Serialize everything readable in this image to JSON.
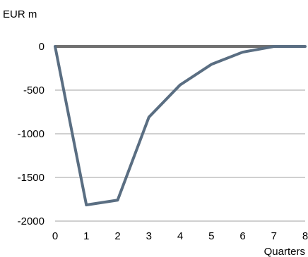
{
  "chart_data": {
    "type": "line",
    "title": "",
    "xlabel": "Quarters",
    "ylabel": "EUR m",
    "x": [
      0,
      1,
      2,
      3,
      4,
      5,
      6,
      7,
      8
    ],
    "xlim": [
      0,
      8
    ],
    "ylim": [
      -2000,
      0
    ],
    "xticks": [
      "0",
      "1",
      "2",
      "3",
      "4",
      "5",
      "6",
      "7",
      "8"
    ],
    "yticks": [
      "0",
      "-500",
      "-1000",
      "-1500",
      "-2000"
    ],
    "grid": "horizontal",
    "legend": "none",
    "series": [
      {
        "values": [
          0,
          -1815,
          -1760,
          -810,
          -440,
          -205,
          -65,
          0,
          0
        ],
        "color": "#5a6e82"
      }
    ],
    "zero_line_color": "#707070",
    "grid_color": "#a0a0a0"
  }
}
